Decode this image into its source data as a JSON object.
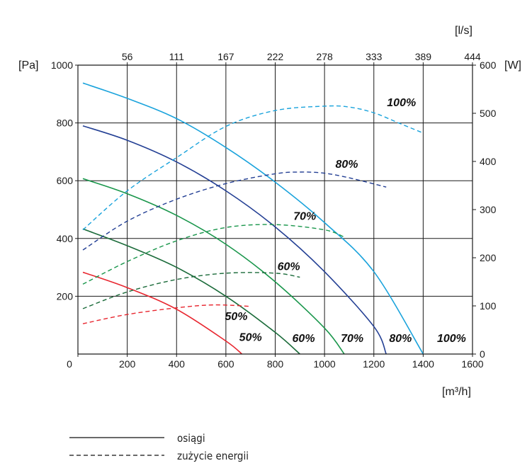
{
  "chart_data": {
    "type": "line",
    "x_axis": {
      "label": "[m³/h]",
      "min": 0,
      "max": 1600,
      "ticks": [
        0,
        200,
        400,
        600,
        800,
        1000,
        1200,
        1400,
        1600
      ]
    },
    "x_top_axis": {
      "label": "[l/s]",
      "ticks": [
        "56",
        "111",
        "167",
        "222",
        "278",
        "333",
        "389",
        "444"
      ],
      "positions_m3h": [
        200,
        400,
        600,
        800,
        1000,
        1200,
        1400,
        1600
      ]
    },
    "y_left_axis": {
      "label": "[Pa]",
      "min": 0,
      "max": 1000,
      "ticks": [
        200,
        400,
        600,
        800,
        1000
      ]
    },
    "y_right_axis": {
      "label": "[W]",
      "min": 0,
      "max": 600,
      "ticks": [
        0,
        100,
        200,
        300,
        400,
        500,
        600
      ]
    },
    "performance_curves": [
      {
        "name": "50%",
        "color": "#e8262f",
        "points": [
          [
            20,
            283
          ],
          [
            200,
            230
          ],
          [
            400,
            155
          ],
          [
            600,
            45
          ],
          [
            665,
            0
          ]
        ]
      },
      {
        "name": "60%",
        "color": "#1b6b3a",
        "points": [
          [
            20,
            433
          ],
          [
            200,
            375
          ],
          [
            400,
            300
          ],
          [
            600,
            200
          ],
          [
            800,
            75
          ],
          [
            900,
            0
          ]
        ]
      },
      {
        "name": "70%",
        "color": "#19964b",
        "points": [
          [
            20,
            607
          ],
          [
            200,
            555
          ],
          [
            400,
            480
          ],
          [
            600,
            380
          ],
          [
            800,
            250
          ],
          [
            1000,
            90
          ],
          [
            1080,
            0
          ]
        ]
      },
      {
        "name": "80%",
        "color": "#233f94",
        "points": [
          [
            20,
            790
          ],
          [
            200,
            740
          ],
          [
            400,
            665
          ],
          [
            600,
            565
          ],
          [
            800,
            440
          ],
          [
            1000,
            285
          ],
          [
            1200,
            95
          ],
          [
            1250,
            0
          ]
        ]
      },
      {
        "name": "100%",
        "color": "#1aa3dc",
        "points": [
          [
            20,
            938
          ],
          [
            200,
            885
          ],
          [
            400,
            815
          ],
          [
            600,
            715
          ],
          [
            800,
            595
          ],
          [
            1000,
            455
          ],
          [
            1200,
            285
          ],
          [
            1400,
            0
          ]
        ]
      }
    ],
    "power_curves": [
      {
        "name": "50%",
        "color": "#e8262f",
        "points": [
          [
            20,
            105
          ],
          [
            200,
            137
          ],
          [
            400,
            160
          ],
          [
            550,
            170
          ],
          [
            700,
            165
          ]
        ]
      },
      {
        "name": "60%",
        "color": "#1b6b3a",
        "points": [
          [
            20,
            157
          ],
          [
            200,
            215
          ],
          [
            400,
            258
          ],
          [
            600,
            280
          ],
          [
            800,
            280
          ],
          [
            900,
            266
          ]
        ]
      },
      {
        "name": "70%",
        "color": "#19964b",
        "points": [
          [
            20,
            242
          ],
          [
            200,
            320
          ],
          [
            400,
            392
          ],
          [
            600,
            438
          ],
          [
            800,
            448
          ],
          [
            1000,
            430
          ],
          [
            1080,
            405
          ]
        ]
      },
      {
        "name": "80%",
        "color": "#233f94",
        "points": [
          [
            20,
            360
          ],
          [
            200,
            460
          ],
          [
            400,
            536
          ],
          [
            600,
            590
          ],
          [
            800,
            624
          ],
          [
            900,
            630
          ],
          [
            1000,
            626
          ],
          [
            1100,
            610
          ],
          [
            1250,
            578
          ]
        ]
      },
      {
        "name": "100%",
        "color": "#1aa3dc",
        "points": [
          [
            20,
            430
          ],
          [
            200,
            565
          ],
          [
            400,
            680
          ],
          [
            600,
            788
          ],
          [
            800,
            843
          ],
          [
            1000,
            858
          ],
          [
            1100,
            855
          ],
          [
            1200,
            835
          ],
          [
            1300,
            800
          ],
          [
            1400,
            765
          ]
        ]
      }
    ],
    "performance_labels": [
      {
        "text": "50%",
        "x": 700,
        "y": 45
      },
      {
        "text": "60%",
        "x": 915,
        "y": 42
      },
      {
        "text": "70%",
        "x": 1112,
        "y": 42
      },
      {
        "text": "80%",
        "x": 1308,
        "y": 42
      },
      {
        "text": "100%",
        "x": 1515,
        "y": 42
      }
    ],
    "power_labels": [
      {
        "text": "50%",
        "x": 642,
        "y": 118
      },
      {
        "text": "60%",
        "x": 855,
        "y": 290
      },
      {
        "text": "70%",
        "x": 920,
        "y": 465
      },
      {
        "text": "80%",
        "x": 1090,
        "y": 645
      },
      {
        "text": "100%",
        "x": 1312,
        "y": 858
      }
    ]
  },
  "legend": {
    "solid_label": "osiągi",
    "dashed_label": "zużycie energii"
  }
}
